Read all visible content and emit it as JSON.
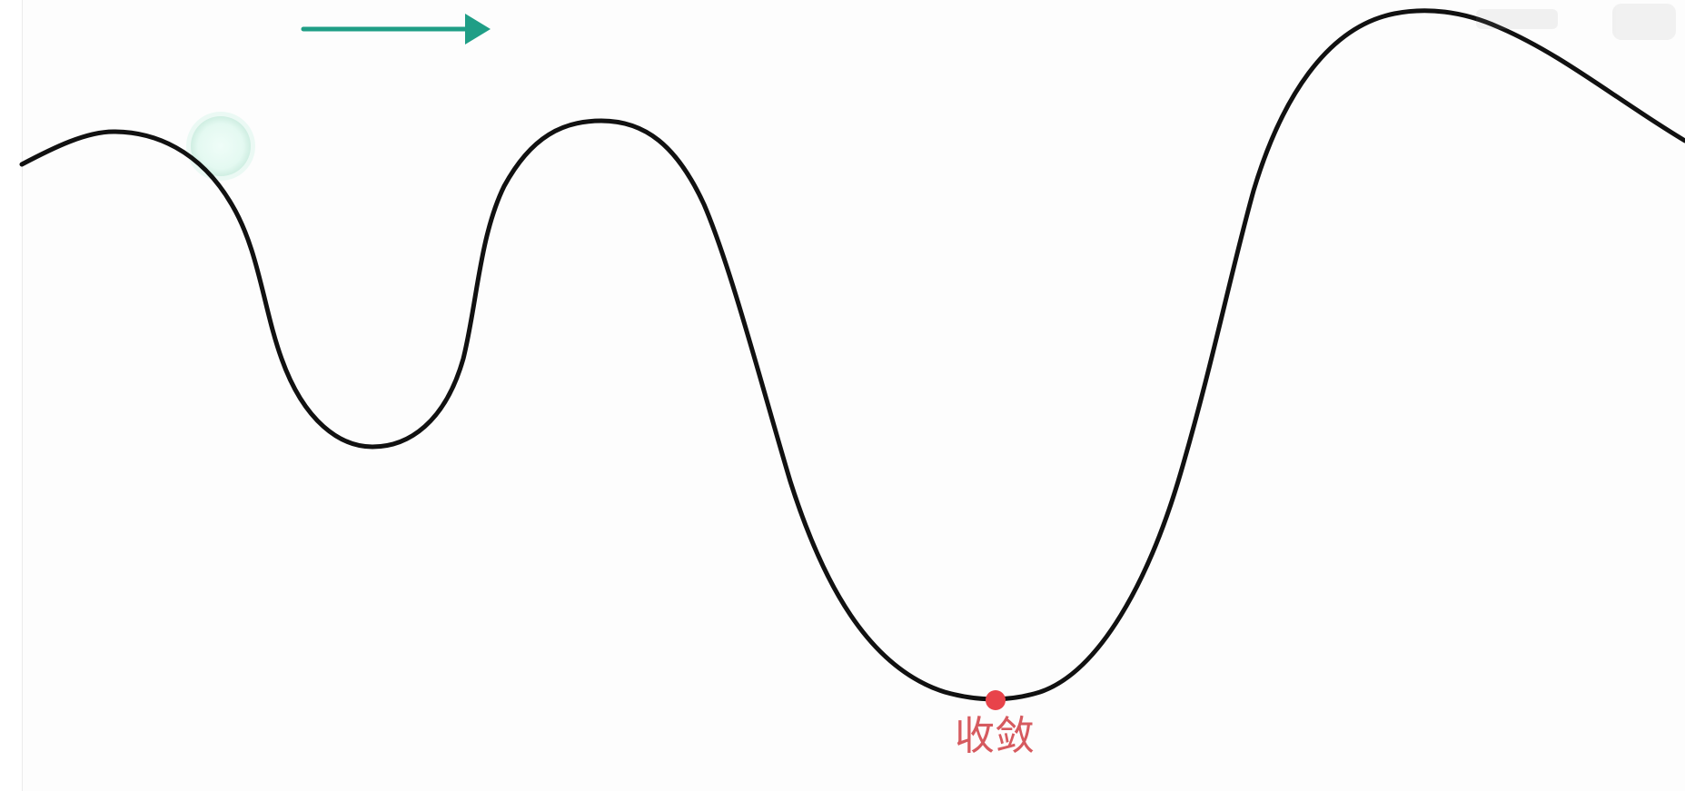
{
  "labels": {
    "minimum_point": "收敛"
  },
  "colors": {
    "curve": "#111111",
    "arrow": "#1f9e86",
    "ball_fill": "#e7fbf4",
    "ball_glow": "#d2f3e8",
    "minimum_dot": "#e8434a",
    "label": "#d65a5f"
  },
  "icons": {
    "direction_arrow": "right-arrow-icon",
    "ball": "ball-icon",
    "minimum_marker": "dot-icon",
    "watermark": "bilibili-watermark-icon"
  }
}
